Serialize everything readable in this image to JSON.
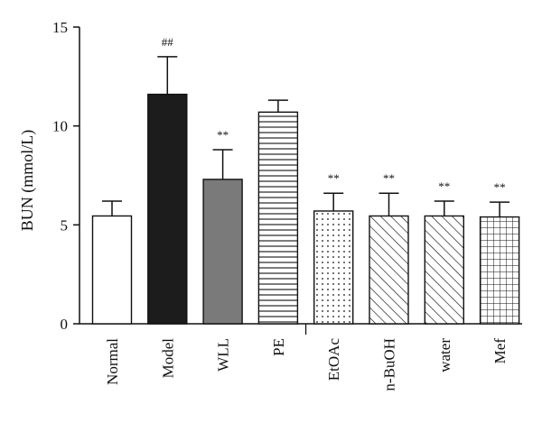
{
  "chart_data": {
    "type": "bar",
    "title": "",
    "xlabel": "",
    "ylabel": "BUN (mmol/L)",
    "ylim": [
      0,
      15
    ],
    "yticks": [
      0,
      5,
      10,
      15
    ],
    "grid": false,
    "categories": [
      "Normal",
      "Model",
      "WLL",
      "PE",
      "EtOAc",
      "n-BuOH",
      "water",
      "Mef"
    ],
    "values": [
      5.45,
      11.6,
      7.3,
      10.7,
      5.7,
      5.45,
      5.45,
      5.4
    ],
    "errors": [
      0.75,
      1.9,
      1.5,
      0.6,
      0.9,
      1.15,
      0.75,
      0.75
    ],
    "significance": [
      "",
      "##",
      "**",
      "",
      "**",
      "**",
      "**",
      "**"
    ],
    "fills": [
      "white",
      "black",
      "gray",
      "horizontal-lines",
      "dots",
      "diagonal-lines",
      "diagonal-lines",
      "grid"
    ]
  }
}
